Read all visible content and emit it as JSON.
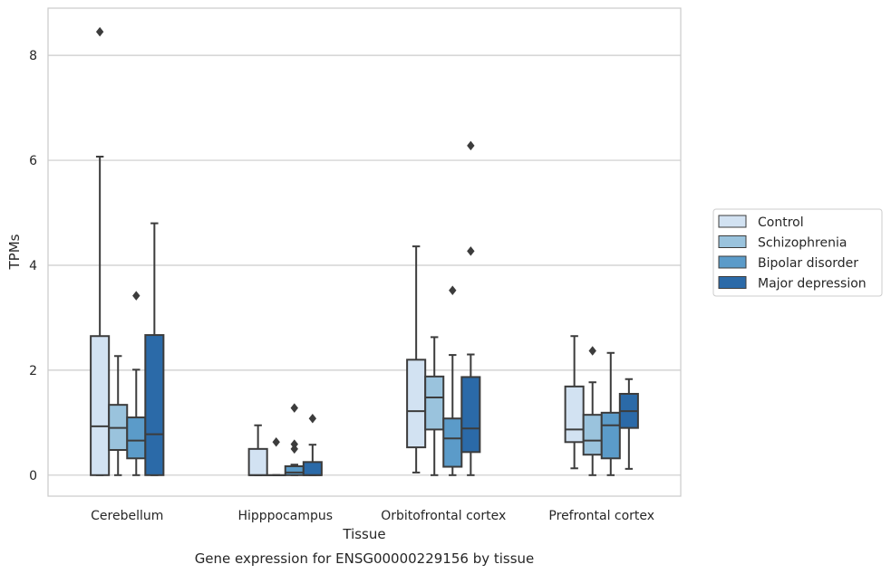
{
  "caption": "Gene expression for ENSG00000229156 by tissue",
  "chart_data": {
    "type": "box",
    "xlabel": "Tissue",
    "ylabel": "TPMs",
    "ylim": [
      -0.4,
      8.9
    ],
    "yticks": [
      0,
      2,
      4,
      6,
      8
    ],
    "grid": "horizontal",
    "legend_position": "right",
    "categories": [
      "Cerebellum",
      "Hipppocampus",
      "Orbitofrontal cortex",
      "Prefrontal cortex"
    ],
    "series": [
      {
        "name": "Control",
        "color": "#d2e2f2",
        "boxes": [
          {
            "q1": 0.0,
            "median": 0.93,
            "q3": 2.65,
            "whislo": 0.0,
            "whishi": 6.07,
            "fliers": [
              8.45
            ]
          },
          {
            "q1": 0.0,
            "median": 0.0,
            "q3": 0.5,
            "whislo": 0.0,
            "whishi": 0.95,
            "fliers": []
          },
          {
            "q1": 0.53,
            "median": 1.22,
            "q3": 2.2,
            "whislo": 0.05,
            "whishi": 4.36,
            "fliers": []
          },
          {
            "q1": 0.63,
            "median": 0.87,
            "q3": 1.69,
            "whislo": 0.13,
            "whishi": 2.65,
            "fliers": []
          }
        ]
      },
      {
        "name": "Schizophrenia",
        "color": "#9ac3dd",
        "boxes": [
          {
            "q1": 0.48,
            "median": 0.9,
            "q3": 1.34,
            "whislo": 0.0,
            "whishi": 2.27,
            "fliers": []
          },
          {
            "q1": 0.0,
            "median": 0.0,
            "q3": 0.0,
            "whislo": 0.0,
            "whishi": 0.0,
            "fliers": [
              0.63
            ]
          },
          {
            "q1": 0.87,
            "median": 1.48,
            "q3": 1.88,
            "whislo": 0.0,
            "whishi": 2.63,
            "fliers": []
          },
          {
            "q1": 0.39,
            "median": 0.66,
            "q3": 1.15,
            "whislo": 0.0,
            "whishi": 1.77,
            "fliers": [
              2.37
            ]
          }
        ]
      },
      {
        "name": "Bipolar disorder",
        "color": "#5b9bc9",
        "boxes": [
          {
            "q1": 0.32,
            "median": 0.66,
            "q3": 1.1,
            "whislo": 0.0,
            "whishi": 2.01,
            "fliers": [
              3.42
            ]
          },
          {
            "q1": 0.0,
            "median": 0.05,
            "q3": 0.17,
            "whislo": 0.0,
            "whishi": 0.2,
            "fliers": [
              0.5,
              0.59,
              1.28
            ]
          },
          {
            "q1": 0.16,
            "median": 0.7,
            "q3": 1.08,
            "whislo": 0.0,
            "whishi": 2.29,
            "fliers": [
              3.52
            ]
          },
          {
            "q1": 0.32,
            "median": 0.95,
            "q3": 1.19,
            "whislo": 0.0,
            "whishi": 2.33,
            "fliers": []
          }
        ]
      },
      {
        "name": "Major depression",
        "color": "#2b6aa8",
        "boxes": [
          {
            "q1": 0.0,
            "median": 0.78,
            "q3": 2.67,
            "whislo": 0.0,
            "whishi": 4.8,
            "fliers": []
          },
          {
            "q1": 0.0,
            "median": 0.0,
            "q3": 0.25,
            "whislo": 0.0,
            "whishi": 0.58,
            "fliers": [
              1.08
            ]
          },
          {
            "q1": 0.44,
            "median": 0.89,
            "q3": 1.87,
            "whislo": 0.0,
            "whishi": 2.3,
            "fliers": [
              4.27,
              6.28
            ]
          },
          {
            "q1": 0.9,
            "median": 1.22,
            "q3": 1.55,
            "whislo": 0.12,
            "whishi": 1.83,
            "fliers": []
          }
        ]
      }
    ]
  }
}
